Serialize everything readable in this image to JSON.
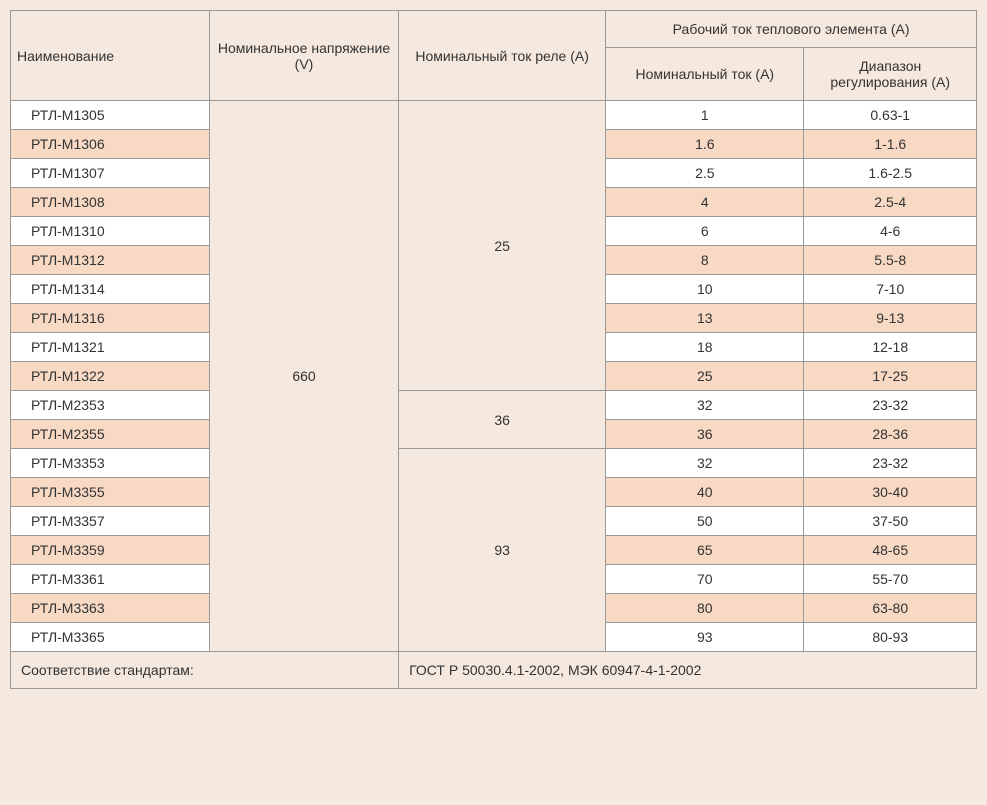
{
  "headers": {
    "name": "Наименование",
    "voltage": "Номинальное напряжение (V)",
    "relay_current": "Номинальный ток реле (A)",
    "thermal_group": "Рабочий ток теплового элемента (A)",
    "nominal_current": "Номинальный ток (A)",
    "range": "Диапазон регулирования (A)"
  },
  "voltage_value": "660",
  "relay_groups": [
    {
      "value": "25",
      "rowspan": 10
    },
    {
      "value": "36",
      "rowspan": 2
    },
    {
      "value": "93",
      "rowspan": 7
    }
  ],
  "rows": [
    {
      "name": "РТЛ-М1305",
      "nom": "1",
      "range": "0.63-1",
      "shade": "white"
    },
    {
      "name": "РТЛ-М1306",
      "nom": "1.6",
      "range": "1-1.6",
      "shade": "peach"
    },
    {
      "name": "РТЛ-М1307",
      "nom": "2.5",
      "range": "1.6-2.5",
      "shade": "white"
    },
    {
      "name": "РТЛ-М1308",
      "nom": "4",
      "range": "2.5-4",
      "shade": "peach"
    },
    {
      "name": "РТЛ-М1310",
      "nom": "6",
      "range": "4-6",
      "shade": "white"
    },
    {
      "name": "РТЛ-М1312",
      "nom": "8",
      "range": "5.5-8",
      "shade": "peach"
    },
    {
      "name": "РТЛ-М1314",
      "nom": "10",
      "range": "7-10",
      "shade": "white"
    },
    {
      "name": "РТЛ-М1316",
      "nom": "13",
      "range": "9-13",
      "shade": "peach"
    },
    {
      "name": "РТЛ-М1321",
      "nom": "18",
      "range": "12-18",
      "shade": "white"
    },
    {
      "name": "РТЛ-М1322",
      "nom": "25",
      "range": "17-25",
      "shade": "peach"
    },
    {
      "name": "РТЛ-М2353",
      "nom": "32",
      "range": "23-32",
      "shade": "white"
    },
    {
      "name": "РТЛ-М2355",
      "nom": "36",
      "range": "28-36",
      "shade": "peach"
    },
    {
      "name": "РТЛ-М3353",
      "nom": "32",
      "range": "23-32",
      "shade": "white"
    },
    {
      "name": "РТЛ-М3355",
      "nom": "40",
      "range": "30-40",
      "shade": "peach"
    },
    {
      "name": "РТЛ-М3357",
      "nom": "50",
      "range": "37-50",
      "shade": "white"
    },
    {
      "name": "РТЛ-М3359",
      "nom": "65",
      "range": "48-65",
      "shade": "peach"
    },
    {
      "name": "РТЛ-М3361",
      "nom": "70",
      "range": "55-70",
      "shade": "white"
    },
    {
      "name": "РТЛ-М3363",
      "nom": "80",
      "range": "63-80",
      "shade": "peach"
    },
    {
      "name": "РТЛ-М3365",
      "nom": "93",
      "range": "80-93",
      "shade": "white"
    }
  ],
  "footer": {
    "label": "Соответствие стандартам:",
    "value": "ГОСТ Р 50030.4.1-2002, МЭК 60947-4-1-2002"
  },
  "colors": {
    "white": "#ffffff",
    "peach": "#f7d9c4",
    "background": "#f5e8de",
    "border": "#999"
  }
}
